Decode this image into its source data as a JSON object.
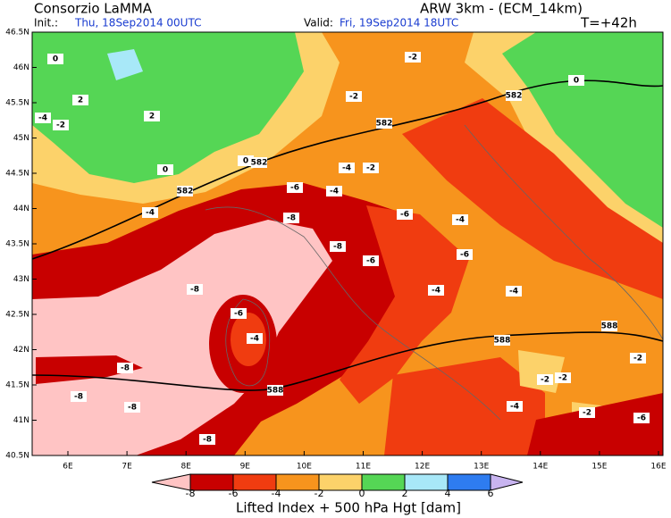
{
  "header": {
    "org": "Consorzio LaMMA",
    "model": "ARW 3km  -  (ECM_14km)",
    "init_label": "Init.:",
    "init": "Thu, 18Sep2014  00UTC",
    "valid_label": "Valid:",
    "valid": "Fri, 19Sep2014  18UTC",
    "lead": "T=+42h"
  },
  "map": {
    "lat_labels": [
      "46.5N",
      "46N",
      "45.5N",
      "45N",
      "44.5N",
      "44N",
      "43.5N",
      "43N",
      "42.5N",
      "42N",
      "41.5N",
      "41N",
      "40.5N"
    ],
    "lon_labels": [
      "6E",
      "7E",
      "8E",
      "9E",
      "10E",
      "11E",
      "12E",
      "13E",
      "14E",
      "15E",
      "16E"
    ],
    "contour_labels": [
      "0",
      "2",
      "0",
      "-2",
      "-4",
      "-2",
      "2",
      "0",
      "-2",
      "582",
      "582",
      "582",
      "582",
      "-4",
      "-2",
      "-4",
      "-6",
      "-8",
      "-4",
      "-6",
      "-4",
      "-6",
      "-8",
      "-6",
      "-4",
      "-8",
      "-6",
      "-4",
      "-4",
      "-8",
      "-8",
      "-8",
      "588",
      "588",
      "588",
      "-2",
      "-2",
      "-4",
      "-2",
      "-6",
      "-8",
      "-2",
      "0"
    ],
    "colors": [
      "#ffc4c4",
      "#c80000",
      "#f03c10",
      "#f7941d",
      "#fcd26a",
      "#55d655",
      "#a8e8f8",
      "#2e7cf0",
      "#c8b4f0"
    ]
  },
  "colorbar": {
    "title": "Lifted Index + 500 hPa Hgt [dam]",
    "labels": [
      "-8",
      "-6",
      "-4",
      "-2",
      "0",
      "2",
      "4",
      "6"
    ]
  }
}
